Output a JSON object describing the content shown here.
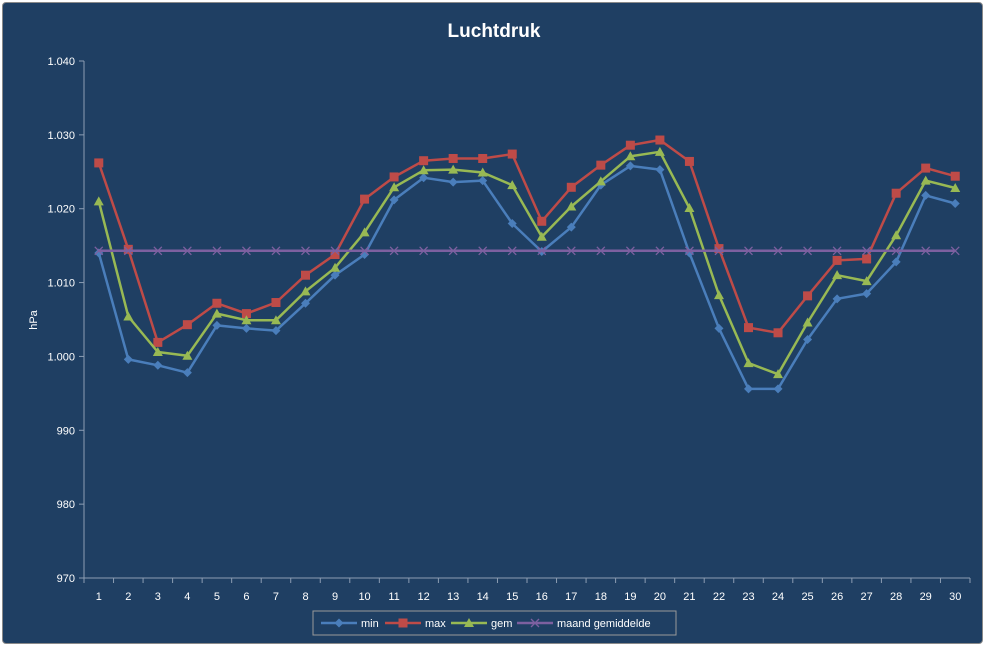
{
  "chart_data": {
    "type": "line",
    "title": "Luchtdruk",
    "xlabel": "",
    "ylabel": "hPa",
    "ylim": [
      970,
      1040
    ],
    "yticks": [
      "970",
      "980",
      "990",
      "1.000",
      "1.010",
      "1.020",
      "1.030",
      "1.040"
    ],
    "ytick_values": [
      970,
      980,
      990,
      1000,
      1010,
      1020,
      1030,
      1040
    ],
    "categories": [
      "1",
      "2",
      "3",
      "4",
      "5",
      "6",
      "7",
      "8",
      "9",
      "10",
      "11",
      "12",
      "13",
      "14",
      "15",
      "16",
      "17",
      "18",
      "19",
      "20",
      "21",
      "22",
      "23",
      "24",
      "25",
      "26",
      "27",
      "28",
      "29",
      "30"
    ],
    "grid": false,
    "legend": "bottom",
    "series": [
      {
        "name": "min",
        "color": "#4a7ebb",
        "marker": "diamond",
        "values": [
          1014.0,
          999.6,
          998.8,
          997.8,
          1004.2,
          1003.8,
          1003.5,
          1007.2,
          1011.0,
          1013.8,
          1021.2,
          1024.2,
          1023.6,
          1023.8,
          1018.0,
          1014.2,
          1017.5,
          1023.2,
          1025.8,
          1025.3,
          1014.0,
          1003.8,
          995.6,
          995.6,
          1002.3,
          1007.8,
          1008.5,
          1012.8,
          1021.8,
          1020.7
        ]
      },
      {
        "name": "max",
        "color": "#be4b48",
        "marker": "square",
        "values": [
          1026.2,
          1014.5,
          1001.9,
          1004.3,
          1007.2,
          1005.8,
          1007.3,
          1011.0,
          1013.8,
          1021.3,
          1024.3,
          1026.5,
          1026.8,
          1026.8,
          1027.4,
          1018.3,
          1022.9,
          1025.9,
          1028.6,
          1029.3,
          1026.4,
          1014.6,
          1003.9,
          1003.2,
          1008.2,
          1013.0,
          1013.2,
          1022.1,
          1025.5,
          1024.4
        ]
      },
      {
        "name": "gem",
        "color": "#98b954",
        "marker": "triangle",
        "values": [
          1021.0,
          1005.4,
          1000.6,
          1000.1,
          1005.8,
          1004.9,
          1004.9,
          1008.8,
          1012.0,
          1016.8,
          1022.9,
          1025.2,
          1025.3,
          1024.9,
          1023.2,
          1016.2,
          1020.3,
          1023.7,
          1027.1,
          1027.7,
          1020.1,
          1008.3,
          999.1,
          997.6,
          1004.6,
          1011.0,
          1010.2,
          1016.4,
          1023.8,
          1022.8
        ]
      },
      {
        "name": "maand gemiddelde",
        "color": "#7d60a0",
        "marker": "x",
        "values": [
          1014.3,
          1014.3,
          1014.3,
          1014.3,
          1014.3,
          1014.3,
          1014.3,
          1014.3,
          1014.3,
          1014.3,
          1014.3,
          1014.3,
          1014.3,
          1014.3,
          1014.3,
          1014.3,
          1014.3,
          1014.3,
          1014.3,
          1014.3,
          1014.3,
          1014.3,
          1014.3,
          1014.3,
          1014.3,
          1014.3,
          1014.3,
          1014.3,
          1014.3,
          1014.3
        ]
      }
    ]
  }
}
